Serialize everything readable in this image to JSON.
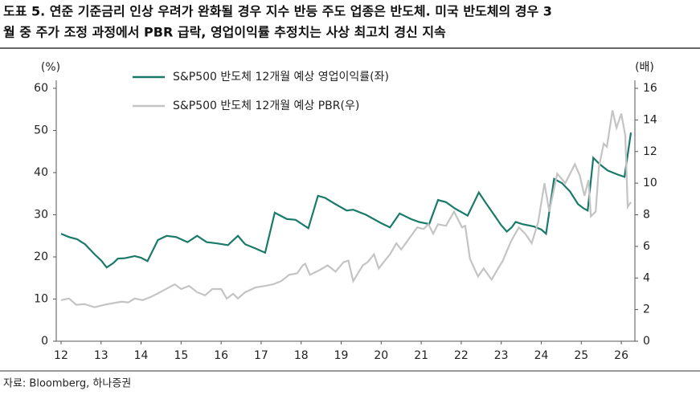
{
  "chart_data": {
    "type": "line",
    "title": [
      "도표 5. 연준 기준금리 인상 우려가 완화될 경우 지수 반등 주도 업종은 반도체. 미국 반도체의 경우 3",
      "월 중 주가 조정 과정에서 PBR 급락, 영업이익률 추정치는 사상 최고치 경신 지속"
    ],
    "y_label": "(%)",
    "y2_label": "(배)",
    "source": "자료: Bloomberg, 하나증권",
    "xlim": [
      11.88,
      26.34
    ],
    "xticks": [
      12,
      13,
      14,
      15,
      16,
      17,
      18,
      19,
      20,
      21,
      22,
      23,
      24,
      25,
      26
    ],
    "ylim": [
      0,
      60
    ],
    "yticks": [
      0,
      10,
      20,
      30,
      40,
      50,
      60
    ],
    "y2lim": [
      0,
      16
    ],
    "y2ticks": [
      0,
      2,
      4,
      6,
      8,
      10,
      12,
      14,
      16
    ],
    "grid": false,
    "legend": "upper left",
    "series": [
      {
        "name": "S&P500 반도체 12개월 예상 영업이익률(좌)",
        "color": "#1a7a6a",
        "axis": "y",
        "x": [
          12.0,
          12.2,
          12.4,
          12.6,
          12.85,
          13.0,
          13.14,
          13.3,
          13.42,
          13.6,
          13.84,
          14.0,
          14.16,
          14.42,
          14.64,
          14.88,
          15.16,
          15.4,
          15.64,
          15.9,
          16.17,
          16.42,
          16.6,
          16.86,
          17.1,
          17.34,
          17.64,
          17.86,
          18.18,
          18.42,
          18.6,
          18.86,
          19.14,
          19.3,
          19.62,
          20.0,
          20.22,
          20.46,
          20.74,
          20.94,
          21.2,
          21.42,
          21.62,
          21.84,
          22.16,
          22.44,
          22.6,
          22.82,
          23.0,
          23.14,
          23.26,
          23.36,
          23.52,
          23.82,
          24.0,
          24.12,
          24.32,
          24.52,
          24.72,
          24.92,
          25.06,
          25.16,
          25.3,
          25.46,
          25.66,
          25.92,
          26.08,
          26.24
        ],
        "values": [
          25.5,
          24.7,
          24.2,
          23,
          20.5,
          19.2,
          17.5,
          18.5,
          19.6,
          19.7,
          20.2,
          19.8,
          19,
          24,
          25,
          24.7,
          23.5,
          25,
          23.5,
          23.2,
          22.8,
          25,
          23,
          22,
          21,
          30.5,
          29,
          28.8,
          26.8,
          34.5,
          34,
          32.5,
          31,
          31.2,
          30,
          28,
          27,
          30.3,
          29,
          28.3,
          27.8,
          33.5,
          33,
          31.5,
          29.8,
          35.3,
          33,
          30,
          27.5,
          26,
          27,
          28.3,
          27.8,
          27.2,
          26.5,
          25.5,
          38.5,
          37.5,
          35.5,
          32.5,
          31.5,
          31,
          43.5,
          42,
          40.5,
          39.5,
          39,
          49.5
        ]
      },
      {
        "name": "S&P500 반도체 12개월 예상 PBR(우)",
        "color": "#c4c4c4",
        "axis": "y2",
        "x": [
          12.0,
          12.2,
          12.38,
          12.58,
          12.84,
          13.08,
          13.28,
          13.52,
          13.68,
          13.84,
          14.04,
          14.24,
          14.4,
          14.62,
          14.84,
          15.0,
          15.2,
          15.4,
          15.6,
          15.78,
          16.0,
          16.14,
          16.3,
          16.42,
          16.6,
          16.86,
          17.1,
          17.3,
          17.5,
          17.7,
          17.9,
          18.04,
          18.1,
          18.22,
          18.46,
          18.66,
          18.86,
          19.06,
          19.18,
          19.3,
          19.54,
          19.66,
          19.82,
          19.94,
          20.06,
          20.22,
          20.38,
          20.5,
          20.7,
          20.9,
          21.06,
          21.18,
          21.3,
          21.42,
          21.62,
          21.82,
          22.02,
          22.1,
          22.22,
          22.42,
          22.56,
          22.76,
          22.92,
          23.04,
          23.24,
          23.44,
          23.6,
          23.76,
          23.92,
          24.08,
          24.2,
          24.4,
          24.6,
          24.76,
          24.84,
          24.96,
          25.08,
          25.18,
          25.24,
          25.36,
          25.44,
          25.56,
          25.64,
          25.78,
          25.88,
          26.0,
          26.1,
          26.16,
          26.24
        ],
        "values": [
          2.6,
          2.7,
          2.3,
          2.35,
          2.15,
          2.3,
          2.4,
          2.5,
          2.45,
          2.7,
          2.6,
          2.8,
          3.0,
          3.3,
          3.6,
          3.3,
          3.5,
          3.1,
          2.9,
          3.3,
          3.3,
          2.7,
          3.0,
          2.7,
          3.1,
          3.4,
          3.5,
          3.6,
          3.8,
          4.2,
          4.3,
          4.8,
          4.9,
          4.2,
          4.5,
          4.8,
          4.4,
          5.0,
          5.1,
          3.8,
          4.8,
          5.0,
          5.5,
          4.6,
          5.0,
          5.5,
          6.2,
          5.8,
          6.5,
          7.2,
          7.1,
          7.4,
          6.8,
          7.4,
          7.3,
          8.2,
          7.2,
          7.3,
          5.2,
          4.1,
          4.6,
          3.9,
          4.6,
          5.1,
          6.3,
          7.2,
          6.8,
          6.2,
          7.5,
          10.0,
          8.2,
          10.6,
          10.0,
          10.8,
          11.2,
          10.5,
          9.2,
          10.2,
          7.9,
          8.2,
          11.0,
          12.5,
          12.3,
          14.6,
          13.5,
          14.4,
          13.0,
          8.5,
          8.8
        ]
      }
    ]
  }
}
